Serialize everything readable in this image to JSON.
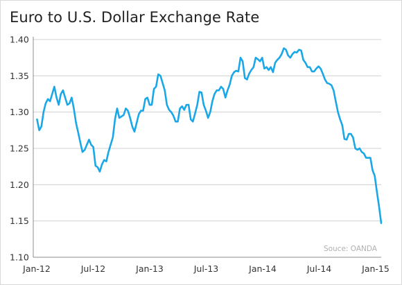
{
  "title": "Euro to U.S. Dollar Exchange Rate",
  "source_note": "Souce: OANDA",
  "colors": {
    "line": "#1aa7e8",
    "grid": "#d0d0d0",
    "axis": "#8c8c8c",
    "text": "#222222"
  },
  "chart_data": {
    "type": "line",
    "title": "Euro to U.S. Dollar Exchange Rate",
    "xlabel": "",
    "ylabel": "",
    "x_tick_labels": [
      "Jan-12",
      "Jul-12",
      "Jan-13",
      "Jul-13",
      "Jan-14",
      "Jul-14",
      "Jan-15"
    ],
    "y_tick_labels": [
      "1.10",
      "1.15",
      "1.20",
      "1.25",
      "1.30",
      "1.35",
      "1.40"
    ],
    "ylim": [
      1.1,
      1.4
    ],
    "xlim": [
      "2012-01",
      "2015-01"
    ],
    "grid": "horizontal",
    "legend": "none",
    "series": [
      {
        "points": [
          [
            "2012-01-02",
            1.29
          ],
          [
            "2012-01-09",
            1.275
          ],
          [
            "2012-01-16",
            1.28
          ],
          [
            "2012-01-23",
            1.3
          ],
          [
            "2012-01-30",
            1.312
          ],
          [
            "2012-02-06",
            1.318
          ],
          [
            "2012-02-13",
            1.315
          ],
          [
            "2012-02-20",
            1.325
          ],
          [
            "2012-02-27",
            1.335
          ],
          [
            "2012-03-05",
            1.32
          ],
          [
            "2012-03-12",
            1.31
          ],
          [
            "2012-03-19",
            1.325
          ],
          [
            "2012-03-26",
            1.33
          ],
          [
            "2012-04-02",
            1.32
          ],
          [
            "2012-04-09",
            1.31
          ],
          [
            "2012-04-16",
            1.312
          ],
          [
            "2012-04-23",
            1.32
          ],
          [
            "2012-04-30",
            1.305
          ],
          [
            "2012-05-07",
            1.285
          ],
          [
            "2012-05-14",
            1.272
          ],
          [
            "2012-05-21",
            1.258
          ],
          [
            "2012-05-28",
            1.245
          ],
          [
            "2012-06-04",
            1.248
          ],
          [
            "2012-06-11",
            1.255
          ],
          [
            "2012-06-18",
            1.262
          ],
          [
            "2012-06-25",
            1.255
          ],
          [
            "2012-07-02",
            1.252
          ],
          [
            "2012-07-09",
            1.226
          ],
          [
            "2012-07-16",
            1.224
          ],
          [
            "2012-07-23",
            1.218
          ],
          [
            "2012-07-30",
            1.228
          ],
          [
            "2012-08-06",
            1.234
          ],
          [
            "2012-08-13",
            1.232
          ],
          [
            "2012-08-20",
            1.245
          ],
          [
            "2012-08-27",
            1.255
          ],
          [
            "2012-09-03",
            1.265
          ],
          [
            "2012-09-10",
            1.29
          ],
          [
            "2012-09-17",
            1.305
          ],
          [
            "2012-09-24",
            1.292
          ],
          [
            "2012-10-01",
            1.294
          ],
          [
            "2012-10-08",
            1.296
          ],
          [
            "2012-10-15",
            1.305
          ],
          [
            "2012-10-22",
            1.302
          ],
          [
            "2012-10-29",
            1.292
          ],
          [
            "2012-11-05",
            1.28
          ],
          [
            "2012-11-12",
            1.273
          ],
          [
            "2012-11-19",
            1.285
          ],
          [
            "2012-11-26",
            1.297
          ],
          [
            "2012-12-03",
            1.302
          ],
          [
            "2012-12-10",
            1.302
          ],
          [
            "2012-12-17",
            1.318
          ],
          [
            "2012-12-24",
            1.32
          ],
          [
            "2012-12-31",
            1.31
          ],
          [
            "2013-01-07",
            1.31
          ],
          [
            "2013-01-14",
            1.332
          ],
          [
            "2013-01-21",
            1.335
          ],
          [
            "2013-01-28",
            1.352
          ],
          [
            "2013-02-04",
            1.35
          ],
          [
            "2013-02-11",
            1.34
          ],
          [
            "2013-02-18",
            1.33
          ],
          [
            "2013-02-25",
            1.31
          ],
          [
            "2013-03-04",
            1.303
          ],
          [
            "2013-03-11",
            1.3
          ],
          [
            "2013-03-18",
            1.295
          ],
          [
            "2013-03-25",
            1.287
          ],
          [
            "2013-04-01",
            1.287
          ],
          [
            "2013-04-08",
            1.305
          ],
          [
            "2013-04-15",
            1.308
          ],
          [
            "2013-04-22",
            1.303
          ],
          [
            "2013-04-29",
            1.31
          ],
          [
            "2013-05-06",
            1.31
          ],
          [
            "2013-05-13",
            1.29
          ],
          [
            "2013-05-20",
            1.287
          ],
          [
            "2013-05-27",
            1.298
          ],
          [
            "2013-06-03",
            1.31
          ],
          [
            "2013-06-10",
            1.328
          ],
          [
            "2013-06-17",
            1.327
          ],
          [
            "2013-06-24",
            1.31
          ],
          [
            "2013-07-01",
            1.302
          ],
          [
            "2013-07-08",
            1.292
          ],
          [
            "2013-07-15",
            1.3
          ],
          [
            "2013-07-22",
            1.315
          ],
          [
            "2013-07-29",
            1.325
          ],
          [
            "2013-08-05",
            1.33
          ],
          [
            "2013-08-12",
            1.33
          ],
          [
            "2013-08-19",
            1.335
          ],
          [
            "2013-08-26",
            1.332
          ],
          [
            "2013-09-02",
            1.32
          ],
          [
            "2013-09-09",
            1.33
          ],
          [
            "2013-09-16",
            1.338
          ],
          [
            "2013-09-23",
            1.35
          ],
          [
            "2013-09-30",
            1.355
          ],
          [
            "2013-10-07",
            1.357
          ],
          [
            "2013-10-14",
            1.356
          ],
          [
            "2013-10-21",
            1.375
          ],
          [
            "2013-10-28",
            1.37
          ],
          [
            "2013-11-04",
            1.347
          ],
          [
            "2013-11-11",
            1.345
          ],
          [
            "2013-11-18",
            1.353
          ],
          [
            "2013-11-25",
            1.358
          ],
          [
            "2013-12-02",
            1.362
          ],
          [
            "2013-12-09",
            1.375
          ],
          [
            "2013-12-16",
            1.373
          ],
          [
            "2013-12-23",
            1.37
          ],
          [
            "2013-12-30",
            1.375
          ],
          [
            "2014-01-06",
            1.36
          ],
          [
            "2014-01-13",
            1.362
          ],
          [
            "2014-01-20",
            1.358
          ],
          [
            "2014-01-27",
            1.362
          ],
          [
            "2014-02-03",
            1.355
          ],
          [
            "2014-02-10",
            1.368
          ],
          [
            "2014-02-17",
            1.372
          ],
          [
            "2014-02-24",
            1.375
          ],
          [
            "2014-03-03",
            1.38
          ],
          [
            "2014-03-10",
            1.388
          ],
          [
            "2014-03-17",
            1.386
          ],
          [
            "2014-03-24",
            1.378
          ],
          [
            "2014-03-31",
            1.375
          ],
          [
            "2014-04-07",
            1.38
          ],
          [
            "2014-04-14",
            1.383
          ],
          [
            "2014-04-21",
            1.382
          ],
          [
            "2014-04-28",
            1.386
          ],
          [
            "2014-05-05",
            1.385
          ],
          [
            "2014-05-12",
            1.372
          ],
          [
            "2014-05-19",
            1.368
          ],
          [
            "2014-05-26",
            1.362
          ],
          [
            "2014-06-02",
            1.362
          ],
          [
            "2014-06-09",
            1.356
          ],
          [
            "2014-06-16",
            1.356
          ],
          [
            "2014-06-23",
            1.36
          ],
          [
            "2014-06-30",
            1.363
          ],
          [
            "2014-07-07",
            1.36
          ],
          [
            "2014-07-14",
            1.353
          ],
          [
            "2014-07-21",
            1.345
          ],
          [
            "2014-07-28",
            1.34
          ],
          [
            "2014-08-04",
            1.339
          ],
          [
            "2014-08-11",
            1.337
          ],
          [
            "2014-08-18",
            1.33
          ],
          [
            "2014-08-25",
            1.315
          ],
          [
            "2014-09-01",
            1.3
          ],
          [
            "2014-09-08",
            1.29
          ],
          [
            "2014-09-15",
            1.282
          ],
          [
            "2014-09-22",
            1.263
          ],
          [
            "2014-09-29",
            1.262
          ],
          [
            "2014-10-06",
            1.27
          ],
          [
            "2014-10-13",
            1.27
          ],
          [
            "2014-10-20",
            1.265
          ],
          [
            "2014-10-27",
            1.25
          ],
          [
            "2014-11-03",
            1.248
          ],
          [
            "2014-11-10",
            1.25
          ],
          [
            "2014-11-17",
            1.245
          ],
          [
            "2014-11-24",
            1.243
          ],
          [
            "2014-12-01",
            1.237
          ],
          [
            "2014-12-08",
            1.237
          ],
          [
            "2014-12-15",
            1.237
          ],
          [
            "2014-12-22",
            1.22
          ],
          [
            "2014-12-29",
            1.212
          ],
          [
            "2015-01-05",
            1.19
          ],
          [
            "2015-01-12",
            1.17
          ],
          [
            "2015-01-19",
            1.147
          ]
        ]
      }
    ]
  }
}
